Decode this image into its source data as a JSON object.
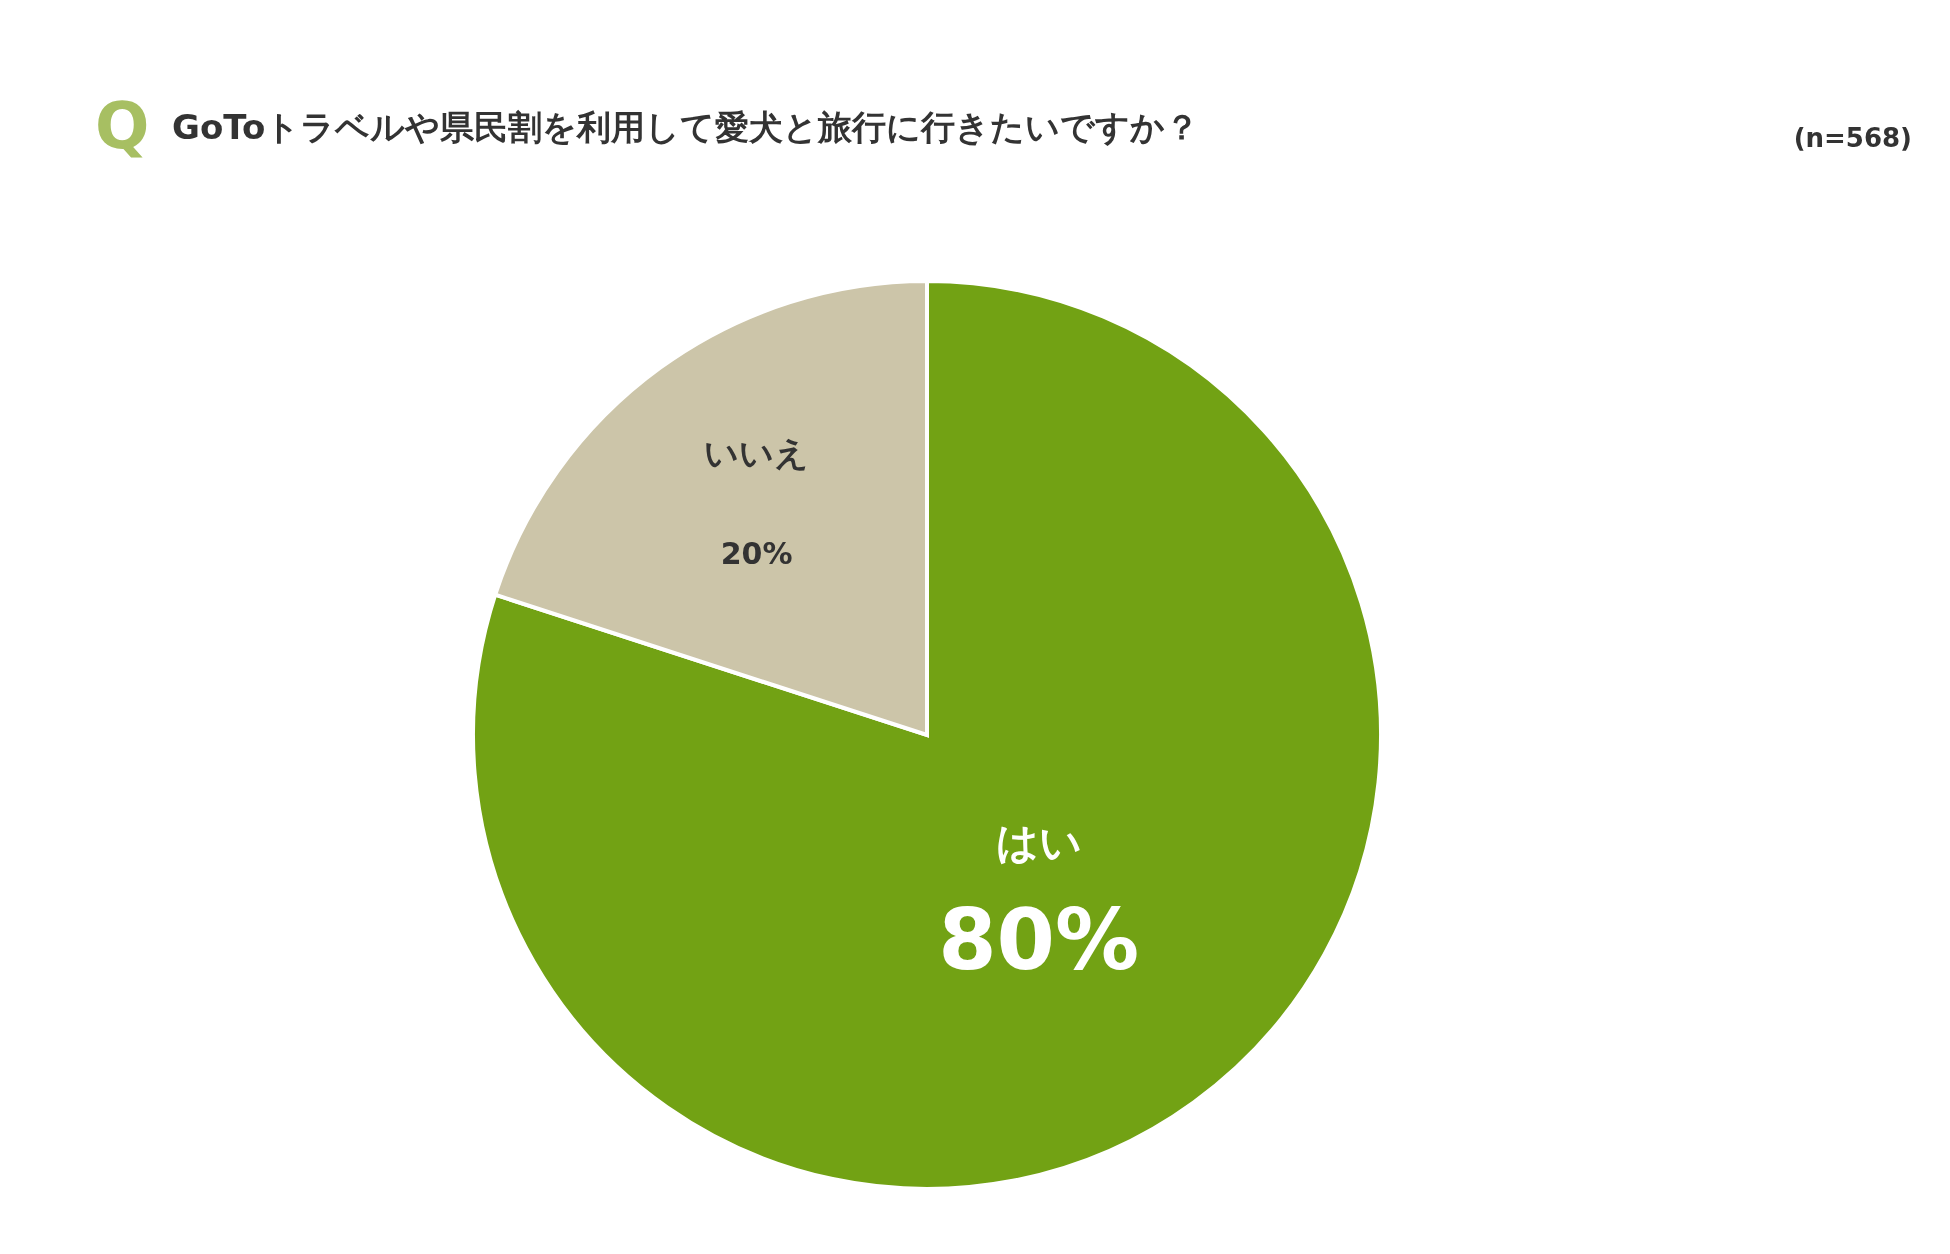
{
  "chart_data": {
    "type": "pie",
    "title": "GoToトラベルや県民割を利用して愛犬と旅行に行きたいですか？",
    "subtitle": "(n=568)",
    "annotations": [
      "Q"
    ],
    "categories": [
      "はい",
      "いいえ"
    ],
    "values": [
      80,
      20
    ],
    "value_labels": [
      "80%",
      "20%"
    ],
    "colors": [
      "#72a214",
      "#ccc5a9"
    ]
  }
}
